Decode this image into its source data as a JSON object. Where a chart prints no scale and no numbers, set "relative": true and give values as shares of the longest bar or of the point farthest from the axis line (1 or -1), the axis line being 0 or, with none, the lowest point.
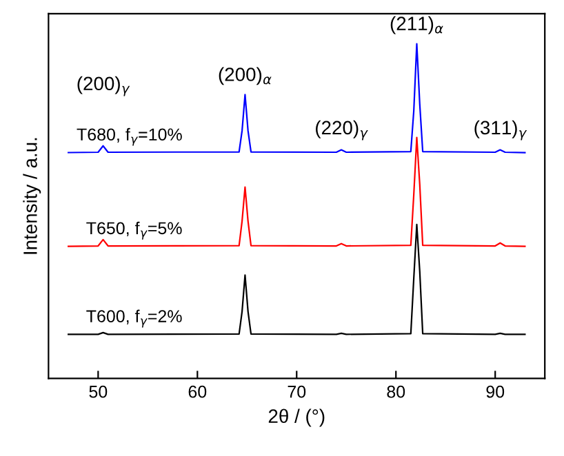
{
  "chart_data": {
    "type": "line",
    "relative": true,
    "xlabel": "2θ / (°)",
    "ylabel": "Intensity / a.u.",
    "xlim": [
      45,
      95
    ],
    "xticks": [
      50,
      60,
      70,
      80,
      90
    ],
    "legend": false,
    "grid": false,
    "x": [
      47,
      50.0,
      50.5,
      51.0,
      64.2,
      64.5,
      64.8,
      65.1,
      65.4,
      74.0,
      74.5,
      75.0,
      81.5,
      81.8,
      82.1,
      82.4,
      82.7,
      90.0,
      90.5,
      91.0,
      93
    ],
    "series": [
      {
        "name": "T600, f$_{γ}$=2%",
        "color": "#000000",
        "values": [
          0.132,
          0.132,
          0.137,
          0.132,
          0.133,
          0.2,
          0.309,
          0.2,
          0.133,
          0.132,
          0.135,
          0.132,
          0.134,
          0.3,
          0.46,
          0.32,
          0.134,
          0.132,
          0.135,
          0.132,
          0.132
        ]
      },
      {
        "name": "T650, f$_{γ}$=5%",
        "color": "#ff0000",
        "values": [
          0.395,
          0.396,
          0.415,
          0.396,
          0.397,
          0.47,
          0.572,
          0.47,
          0.397,
          0.396,
          0.403,
          0.396,
          0.398,
          0.55,
          0.72,
          0.58,
          0.398,
          0.396,
          0.405,
          0.396,
          0.395
        ]
      },
      {
        "name": "T680, f$_{γ}$=10%",
        "color": "#0000ff",
        "values": [
          0.675,
          0.676,
          0.695,
          0.676,
          0.677,
          0.74,
          0.848,
          0.74,
          0.677,
          0.676,
          0.683,
          0.676,
          0.678,
          0.8,
          1.0,
          0.82,
          0.678,
          0.676,
          0.683,
          0.676,
          0.675
        ]
      }
    ],
    "annotations": [
      {
        "text": "(200)$_{γ}$",
        "x": 50.5,
        "y": 0.695
      },
      {
        "text": "(200)$_{α}$",
        "x": 64.8,
        "y": 0.848
      },
      {
        "text": "(220)$_{γ}$",
        "x": 74.5,
        "y": 0.683
      },
      {
        "text": "(211)$_{α}$",
        "x": 82.1,
        "y": 1.0
      },
      {
        "text": "(311)$_{γ}$",
        "x": 90.5,
        "y": 0.683
      }
    ]
  }
}
